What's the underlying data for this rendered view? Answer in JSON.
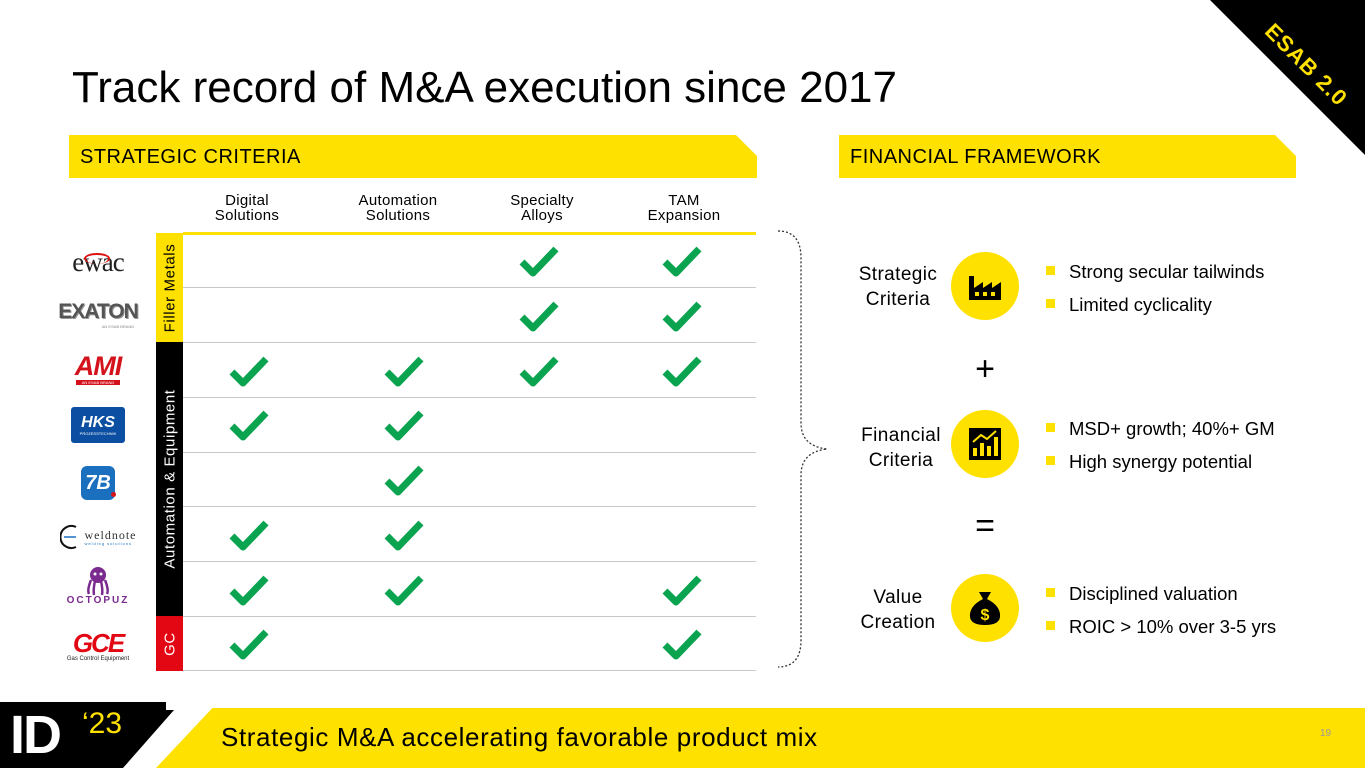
{
  "badge": "ESAB 2.0",
  "title": "Track record of M&A execution since 2017",
  "strategic": {
    "header": "STRATEGIC CRITERIA",
    "columns": [
      {
        "line1": "Digital",
        "line2": "Solutions"
      },
      {
        "line1": "Automation",
        "line2": "Solutions"
      },
      {
        "line1": "Specialty",
        "line2": "Alloys"
      },
      {
        "line1": "TAM",
        "line2": "Expansion"
      }
    ],
    "bands": {
      "filler": "Filler Metals",
      "automation": "Automation & Equipment",
      "gc": "GC"
    },
    "rows": [
      {
        "logo": "ewac",
        "checks": [
          false,
          false,
          true,
          true
        ]
      },
      {
        "logo": "EXATON",
        "sub": "AN ESAB BRAND",
        "checks": [
          false,
          false,
          true,
          true
        ]
      },
      {
        "logo": "AMI",
        "sub": "AN ESAB BRAND",
        "checks": [
          true,
          true,
          true,
          true
        ]
      },
      {
        "logo": "HKS",
        "sub": "PROZESSTECHNIK",
        "checks": [
          true,
          true,
          false,
          false
        ]
      },
      {
        "logo": "7B",
        "checks": [
          false,
          true,
          false,
          false
        ]
      },
      {
        "logo": "weldnote",
        "sub": "welding solutions",
        "checks": [
          true,
          true,
          false,
          false
        ]
      },
      {
        "logo": "OCTOPUZ",
        "checks": [
          true,
          true,
          false,
          true
        ]
      },
      {
        "logo": "GCE",
        "sub": "Gas Control Equipment",
        "checks": [
          true,
          false,
          false,
          true
        ]
      }
    ]
  },
  "financial": {
    "header": "FINANCIAL FRAMEWORK",
    "items": [
      {
        "label1": "Strategic",
        "label2": "Criteria",
        "icon": "factory-icon",
        "bullets": [
          "Strong secular tailwinds",
          "Limited cyclicality"
        ]
      },
      {
        "label1": "Financial",
        "label2": "Criteria",
        "icon": "bar-chart-icon",
        "bullets": [
          "MSD+ growth; 40%+ GM",
          "High synergy potential"
        ]
      },
      {
        "label1": "Value",
        "label2": "Creation",
        "icon": "money-bag-icon",
        "bullets": [
          "Disciplined valuation",
          "ROIC > 10% over 3-5 yrs"
        ]
      }
    ],
    "plus": "+",
    "equals": "="
  },
  "footer": {
    "logo_main": "ID",
    "logo_year": "‘23",
    "tagline": "Strategic M&A accelerating favorable product mix",
    "page_number": "19"
  },
  "colors": {
    "brand_yellow": "#ffe100",
    "check_green": "#0aa34f",
    "band_red": "#e30613"
  }
}
